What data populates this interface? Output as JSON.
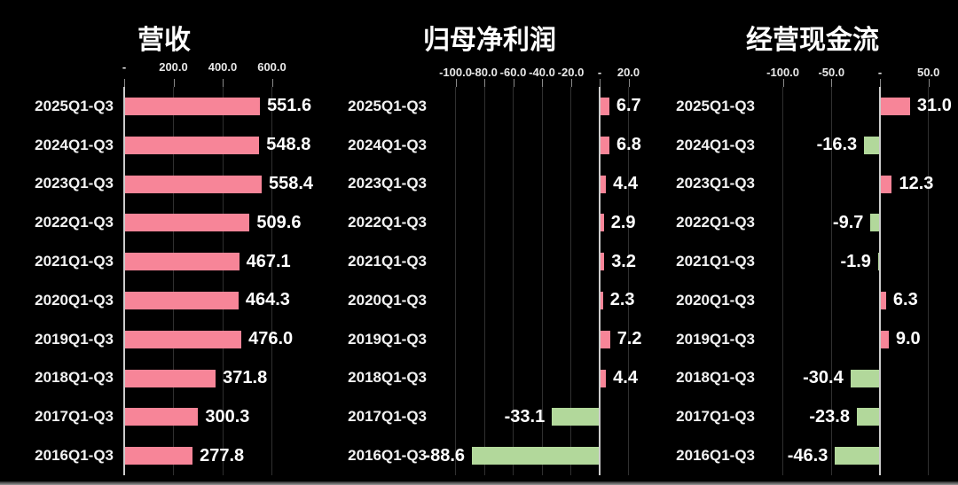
{
  "page": {
    "background": "#000000",
    "description_titles": [
      "营收",
      "归母净利润",
      "经营现金流"
    ]
  },
  "colors": {
    "positive_bar": "#f78598",
    "negative_bar": "#b2d89b",
    "text": "#ffffff",
    "gridline": "#303030",
    "zero_axis_line": "#cccccc",
    "tick_mark": "#8a8a8a"
  },
  "chart_data": [
    {
      "type": "bar",
      "orientation": "horizontal",
      "title": "营收",
      "categories": [
        "2025Q1-Q3",
        "2024Q1-Q3",
        "2023Q1-Q3",
        "2022Q1-Q3",
        "2021Q1-Q3",
        "2020Q1-Q3",
        "2019Q1-Q3",
        "2018Q1-Q3",
        "2017Q1-Q3",
        "2016Q1-Q3"
      ],
      "values": [
        551.6,
        548.8,
        558.4,
        509.6,
        467.1,
        464.3,
        476.0,
        371.8,
        300.3,
        277.8
      ],
      "value_labels": [
        "551.6",
        "548.8",
        "558.4",
        "509.6",
        "467.1",
        "464.3",
        "476.0",
        "371.8",
        "300.3",
        "277.8"
      ],
      "x_ticks": [
        {
          "value": 0,
          "label": "-"
        },
        {
          "value": 200,
          "label": "200.0"
        },
        {
          "value": 400,
          "label": "400.0"
        },
        {
          "value": 600,
          "label": "600.0"
        }
      ],
      "xlim": [
        0,
        800
      ],
      "grid": true,
      "legend": null
    },
    {
      "type": "bar",
      "orientation": "horizontal",
      "title": "归母净利润",
      "categories": [
        "2025Q1-Q3",
        "2024Q1-Q3",
        "2023Q1-Q3",
        "2022Q1-Q3",
        "2021Q1-Q3",
        "2020Q1-Q3",
        "2019Q1-Q3",
        "2018Q1-Q3",
        "2017Q1-Q3",
        "2016Q1-Q3"
      ],
      "values": [
        6.7,
        6.8,
        4.4,
        2.9,
        3.2,
        2.3,
        7.2,
        4.4,
        -33.1,
        -88.6
      ],
      "value_labels": [
        "6.7",
        "6.8",
        "4.4",
        "2.9",
        "3.2",
        "2.3",
        "7.2",
        "4.4",
        "-33.1",
        "-88.6"
      ],
      "x_ticks": [
        {
          "value": -100,
          "label": "-100.0"
        },
        {
          "value": -80,
          "label": "-80.0"
        },
        {
          "value": -60,
          "label": "-60.0"
        },
        {
          "value": -40,
          "label": "-40.0"
        },
        {
          "value": -20,
          "label": "-20.0"
        },
        {
          "value": 0,
          "label": "-"
        },
        {
          "value": 20,
          "label": "20.0"
        }
      ],
      "xlim": [
        -110,
        30
      ],
      "grid": true,
      "legend": null
    },
    {
      "type": "bar",
      "orientation": "horizontal",
      "title": "经营现金流",
      "categories": [
        "2025Q1-Q3",
        "2024Q1-Q3",
        "2023Q1-Q3",
        "2022Q1-Q3",
        "2021Q1-Q3",
        "2020Q1-Q3",
        "2019Q1-Q3",
        "2018Q1-Q3",
        "2017Q1-Q3",
        "2016Q1-Q3"
      ],
      "values": [
        31.0,
        -16.3,
        12.3,
        -9.7,
        -1.9,
        6.3,
        9.0,
        -30.4,
        -23.8,
        -46.3
      ],
      "value_labels": [
        "31.0",
        "-16.3",
        "12.3",
        "-9.7",
        "-1.9",
        "6.3",
        "9.0",
        "-30.4",
        "-23.8",
        "-46.3"
      ],
      "x_ticks": [
        {
          "value": -100,
          "label": "-100.0"
        },
        {
          "value": -50,
          "label": "-50.0"
        },
        {
          "value": 0,
          "label": "-"
        },
        {
          "value": 50,
          "label": "50.0"
        }
      ],
      "xlim": [
        -125,
        75
      ],
      "grid": true,
      "legend": null
    }
  ]
}
